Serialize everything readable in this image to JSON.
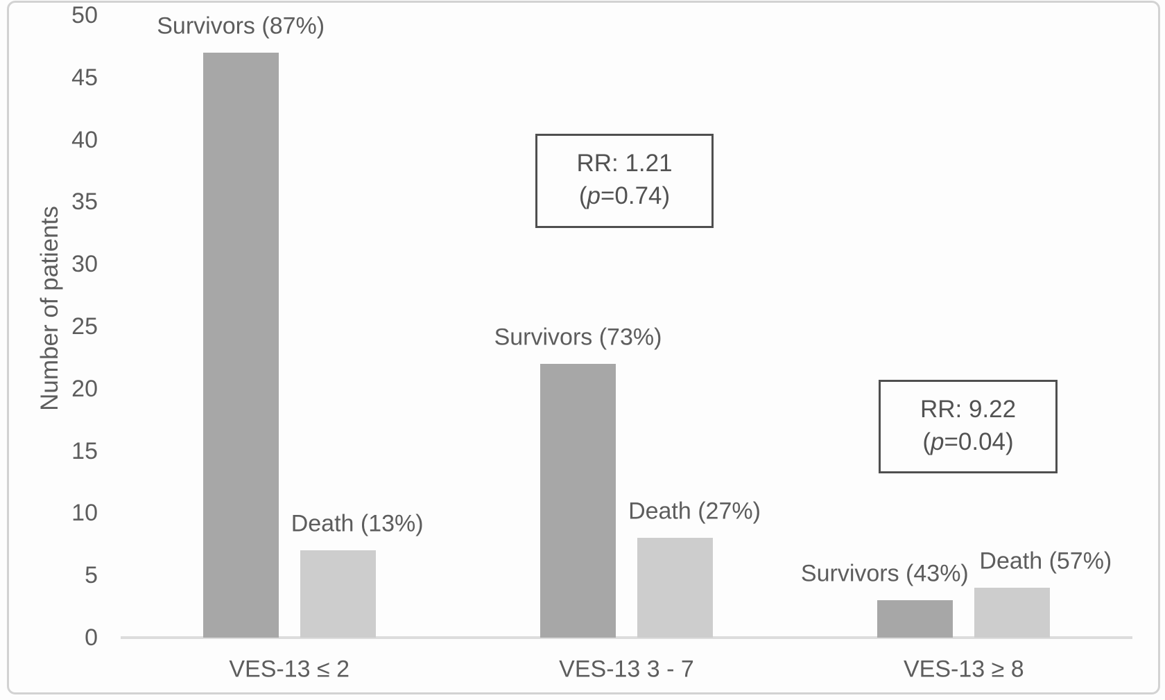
{
  "figure": {
    "background": "#fdfdfd",
    "frame_color": "#d2d2d2",
    "text_color": "#5d5d5d",
    "axis_line_color": "#dcdcdc",
    "annotation_border_color": "#4f4f4f"
  },
  "chart_data": {
    "type": "bar",
    "title": "",
    "xlabel": "",
    "ylabel": "Number of patients",
    "ylim": [
      0,
      50
    ],
    "ytick_interval": 5,
    "ytick_labels": [
      "0",
      "5",
      "10",
      "15",
      "20",
      "25",
      "30",
      "35",
      "40",
      "45",
      "50"
    ],
    "grid": false,
    "legend_position": "none",
    "categories": [
      "VES-13 ≤ 2",
      "VES-13 3 - 7",
      "VES-13 ≥ 8"
    ],
    "series": [
      {
        "name": "Survivors",
        "color": "#a7a7a7",
        "values": [
          47,
          22,
          3
        ],
        "point_labels": [
          "Survivors (87%)",
          "Survivors (73%)",
          "Survivors (43%)"
        ]
      },
      {
        "name": "Death",
        "color": "#cdcdcd",
        "values": [
          7,
          8,
          4
        ],
        "point_labels": [
          "Death (13%)",
          "Death (27%)",
          "Death (57%)"
        ]
      }
    ],
    "annotations": [
      {
        "rr": "RR: 1.21",
        "p_open": "(",
        "p_italic": "p",
        "p_rest": "=0.74)"
      },
      {
        "rr": "RR: 9.22",
        "p_open": "(",
        "p_italic": "p",
        "p_rest": "=0.04)"
      }
    ]
  }
}
